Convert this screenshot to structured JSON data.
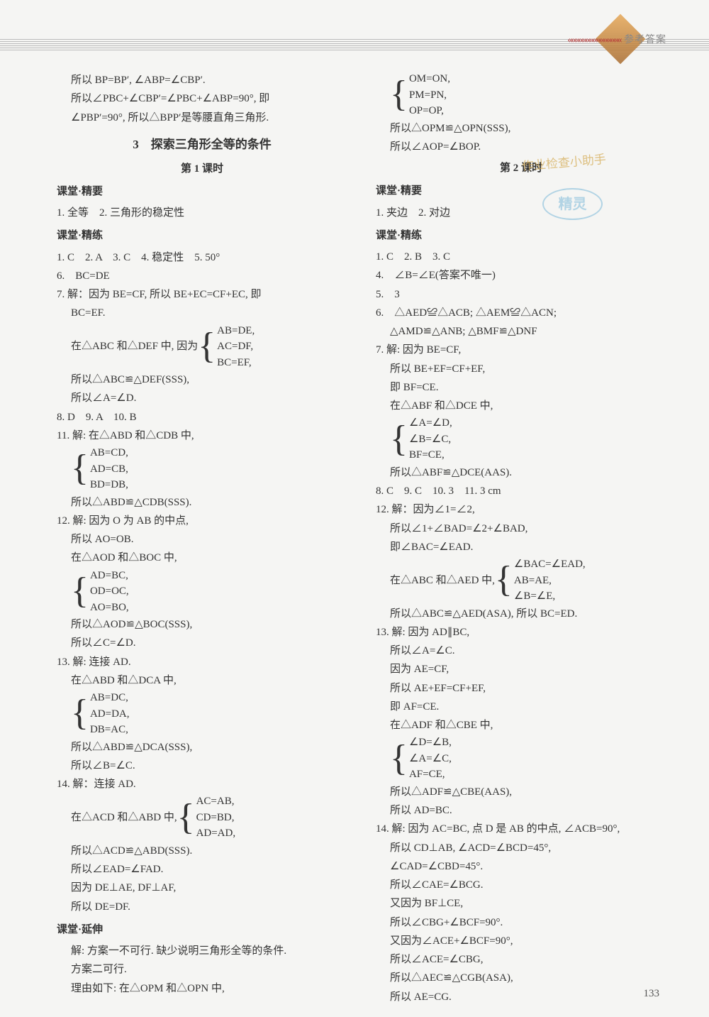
{
  "header": {
    "chevrons": "«««««««««««««««",
    "label": "参考答案"
  },
  "page_number": "133",
  "watermark": {
    "text": "作业检查小助手",
    "stamp": "精灵"
  },
  "section_title": "3　探索三角形全等的条件",
  "lesson1_title": "第 1 课时",
  "lesson2_title": "第 2 课时",
  "subsections": {
    "jingyao": "课堂·精要",
    "jinglian": "课堂·精练",
    "yanshen": "课堂·延伸"
  },
  "left": {
    "intro": [
      "所以 BP=BP′, ∠ABP=∠CBP′.",
      "所以∠PBC+∠CBP′=∠PBC+∠ABP=90°, 即",
      "∠PBP′=90°, 所以△BPP′是等腰直角三角形."
    ],
    "jingyao": "1. 全等　2. 三角形的稳定性",
    "jinglian_rows": [
      "1. C　2. A　3. C　4. 稳定性　5. 50°",
      "6.　BC=DE"
    ],
    "q7": {
      "head": "7. 解：因为 BE=CF, 所以 BE+EC=CF+EC, 即",
      "l2": "BC=EF.",
      "pre_brace": "在△ABC 和△DEF 中, 因为",
      "brace": [
        "AB=DE,",
        "AC=DF,",
        "BC=EF,"
      ],
      "l3": "所以△ABC≌△DEF(SSS),",
      "l4": "所以∠A=∠D."
    },
    "row_8_10": "8. D　9. A　10. B",
    "q11": {
      "head": "11. 解: 在△ABD 和△CDB 中,",
      "brace": [
        "AB=CD,",
        "AD=CB,",
        "BD=DB,"
      ],
      "l2": "所以△ABD≌△CDB(SSS)."
    },
    "q12": {
      "head": "12. 解: 因为 O 为 AB 的中点,",
      "l1": "所以 AO=OB.",
      "l2": "在△AOD 和△BOC 中,",
      "brace": [
        "AD=BC,",
        "OD=OC,",
        "AO=BO,"
      ],
      "l3": "所以△AOD≌△BOC(SSS),",
      "l4": "所以∠C=∠D."
    },
    "q13": {
      "head": "13. 解: 连接 AD.",
      "l1": "在△ABD 和△DCA 中,",
      "brace": [
        "AB=DC,",
        "AD=DA,",
        "DB=AC,"
      ],
      "l2": "所以△ABD≌△DCA(SSS),",
      "l3": "所以∠B=∠C."
    },
    "q14": {
      "head": "14. 解：连接 AD.",
      "pre_brace": "在△ACD 和△ABD 中, ",
      "brace": [
        "AC=AB,",
        "CD=BD,",
        "AD=AD,"
      ],
      "l2": "所以△ACD≌△ABD(SSS).",
      "l3": "所以∠EAD=∠FAD.",
      "l4": "因为 DE⊥AE, DF⊥AF,",
      "l5": "所以 DE=DF."
    },
    "yanshen": {
      "l1": "解: 方案一不可行. 缺少说明三角形全等的条件.",
      "l2": "方案二可行.",
      "l3": "理由如下: 在△OPM 和△OPN 中,"
    }
  },
  "right": {
    "top_brace": [
      "OM=ON,",
      "PM=PN,",
      "OP=OP,"
    ],
    "top_l1": "所以△OPM≌△OPN(SSS),",
    "top_l2": "所以∠AOP=∠BOP.",
    "jingyao": "1. 夹边　2. 对边",
    "jinglian_rows": [
      "1. C　2. B　3. C",
      "4.　∠B=∠E(答案不唯一)",
      "5.　3",
      "6.　△AED≌△ACB; △AEM≌△ACN;"
    ],
    "q6_cont": "△AMD≌△ANB; △BMF≌△DNF",
    "q7": {
      "head": "7. 解: 因为 BE=CF,",
      "l1": "所以 BE+EF=CF+EF,",
      "l2": "即 BF=CE.",
      "l3": "在△ABF 和△DCE 中,",
      "brace": [
        "∠A=∠D,",
        "∠B=∠C,",
        "BF=CE,"
      ],
      "l4": "所以△ABF≌△DCE(AAS)."
    },
    "row_8_11": "8. C　9. C　10. 3　11. 3 cm",
    "q12": {
      "head": "12. 解：因为∠1=∠2,",
      "l1": "所以∠1+∠BAD=∠2+∠BAD,",
      "l2": "即∠BAC=∠EAD.",
      "pre_brace": "在△ABC 和△AED 中, ",
      "brace": [
        "∠BAC=∠EAD,",
        "AB=AE,",
        "∠B=∠E,"
      ],
      "l3": "所以△ABC≌△AED(ASA), 所以 BC=ED."
    },
    "q13": {
      "head": "13. 解: 因为 AD∥BC,",
      "l1": "所以∠A=∠C.",
      "l2": "因为 AE=CF,",
      "l3": "所以 AE+EF=CF+EF,",
      "l4": "即 AF=CE.",
      "l5": "在△ADF 和△CBE 中,",
      "brace": [
        "∠D=∠B,",
        "∠A=∠C,",
        "AF=CE,"
      ],
      "l6": "所以△ADF≌△CBE(AAS),",
      "l7": "所以 AD=BC."
    },
    "q14": {
      "head": "14. 解: 因为 AC=BC, 点 D 是 AB 的中点, ∠ACB=90°,",
      "l1": "所以 CD⊥AB, ∠ACD=∠BCD=45°,",
      "l2": "∠CAD=∠CBD=45°.",
      "l3": "所以∠CAE=∠BCG.",
      "l4": "又因为 BF⊥CE,",
      "l5": "所以∠CBG+∠BCF=90°.",
      "l6": "又因为∠ACE+∠BCF=90°,",
      "l7": "所以∠ACE=∠CBG,",
      "l8": "所以△AEC≌△CGB(ASA),",
      "l9": "所以 AE=CG."
    }
  }
}
